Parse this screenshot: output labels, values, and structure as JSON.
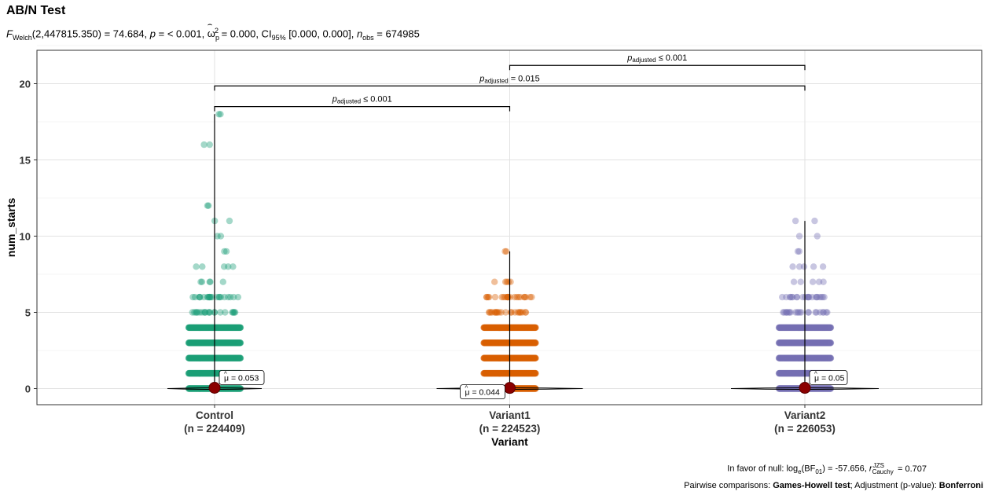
{
  "title": "AB/N Test",
  "subtitle": {
    "stat_name": "F",
    "stat_sub": "Welch",
    "stat_args": "(2,447815.350) = 74.684, ",
    "p_label": "p",
    "p_value": " = < 0.001, ",
    "effect_symbol": "ω",
    "effect_sub": "p",
    "effect_sup": "2",
    "effect_value": " = 0.000, CI",
    "ci_sub": "95%",
    "ci_value": " [0.000, 0.000], ",
    "n_label": "n",
    "n_sub": "obs",
    "n_value": " = 674985"
  },
  "caption": {
    "bf_prefix": "In favor of null: log",
    "bf_sub": "e",
    "bf_mid": "(BF",
    "bf_sub2": "01",
    "bf_value": ") = -57.656, ",
    "r_label": "r",
    "r_sup": "JZS",
    "r_sub": "Cauchy",
    "r_value": " = 0.707",
    "pairwise_prefix": "Pairwise comparisons: ",
    "pairwise_test": "Games-Howell test",
    "adjust_prefix": "; Adjustment (p-value): ",
    "adjust_method": "Bonferroni"
  },
  "chart_data": {
    "type": "scatter",
    "xlabel": "Variant",
    "ylabel": "num_starts",
    "ylim": [
      -1,
      23
    ],
    "yticks": [
      0,
      5,
      10,
      15,
      20
    ],
    "grid": true,
    "groups": [
      {
        "name": "Control",
        "n_label": "(n = 224409)",
        "color": "#1B9E77",
        "mean": 0.053,
        "mean_label": "= 0.053",
        "label_side": "right",
        "values": [
          0,
          1,
          2,
          3,
          4,
          5,
          6,
          7,
          8,
          9,
          10,
          11,
          12,
          16,
          18
        ]
      },
      {
        "name": "Variant1",
        "n_label": "(n = 224523)",
        "color": "#D95F02",
        "mean": 0.044,
        "mean_label": "= 0.044",
        "label_side": "left",
        "values": [
          0,
          1,
          2,
          3,
          4,
          5,
          6,
          7,
          9
        ]
      },
      {
        "name": "Variant2",
        "n_label": "(n = 226053)",
        "color": "#7570B3",
        "mean": 0.05,
        "mean_label": "= 0.05",
        "label_side": "right",
        "values": [
          0,
          1,
          2,
          3,
          4,
          5,
          6,
          7,
          8,
          9,
          10,
          11
        ]
      }
    ],
    "comparisons": [
      {
        "from": 0,
        "to": 1,
        "y": 18.5,
        "p_text": " ≤ 0.001"
      },
      {
        "from": 0,
        "to": 2,
        "y": 19.85,
        "p_text": " = 0.015"
      },
      {
        "from": 1,
        "to": 2,
        "y": 21.2,
        "p_text": " ≤ 0.001"
      }
    ],
    "p_label": "p",
    "p_sub": "adjusted",
    "mean_symbol": "μ",
    "mean_color": "#8B0000"
  }
}
